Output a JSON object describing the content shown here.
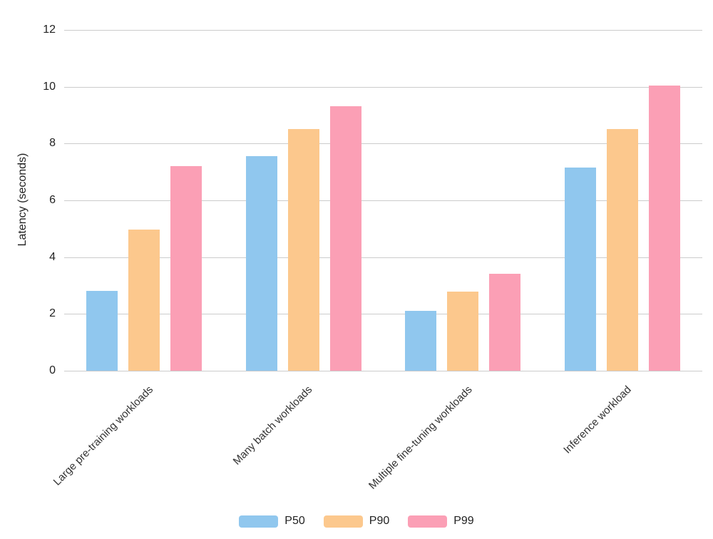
{
  "chart_data": {
    "type": "bar",
    "title": "",
    "ylabel": "Latency (seconds)",
    "xlabel": "",
    "ylim": [
      0,
      12
    ],
    "yticks": [
      0,
      2,
      4,
      6,
      8,
      10,
      12
    ],
    "grid": true,
    "legend_position": "bottom",
    "categories": [
      "Large pre-training workloads",
      "Many batch workloads",
      "Multiple fine-tuning workloads",
      "Inference workload"
    ],
    "series": [
      {
        "name": "P50",
        "color": "#90c7ee",
        "values": [
          2.82,
          7.55,
          2.1,
          7.15
        ]
      },
      {
        "name": "P90",
        "color": "#fcc88d",
        "values": [
          4.98,
          8.52,
          2.78,
          8.5
        ]
      },
      {
        "name": "P99",
        "color": "#fb9fb5",
        "values": [
          7.2,
          9.32,
          3.42,
          10.05
        ]
      }
    ]
  },
  "colors": {
    "gridline": "#cccccc",
    "text": "#222222",
    "background": "#ffffff"
  }
}
